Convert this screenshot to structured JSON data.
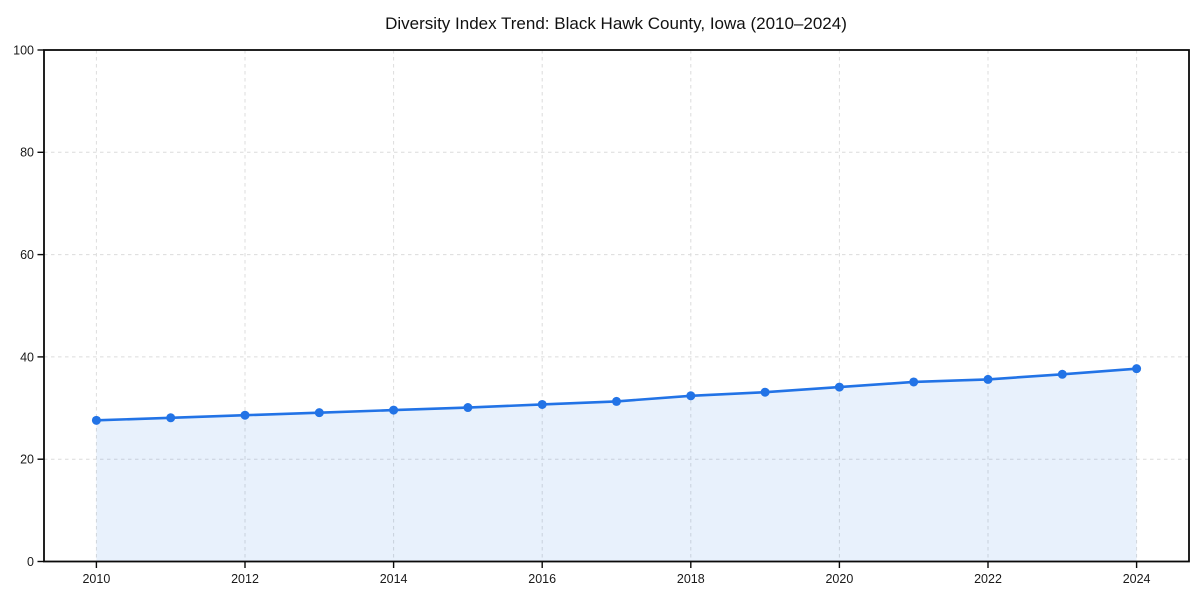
{
  "page": {
    "background": "#ffffff"
  },
  "chart_data": {
    "type": "line",
    "title": "Diversity Index Trend: Black Hawk County, Iowa (2010–2024)",
    "x": [
      2010,
      2011,
      2012,
      2013,
      2014,
      2015,
      2016,
      2017,
      2018,
      2019,
      2020,
      2021,
      2022,
      2023,
      2024
    ],
    "series": [
      {
        "name": "Diversity Index",
        "values": [
          27.6,
          28.1,
          28.6,
          29.1,
          29.6,
          30.1,
          30.7,
          31.3,
          32.4,
          33.1,
          34.1,
          35.1,
          35.6,
          36.6,
          37.7
        ]
      }
    ],
    "xlabel": "",
    "ylabel": "",
    "ylim": [
      0,
      100
    ],
    "yticks": [
      0,
      20,
      40,
      60,
      80,
      100
    ],
    "xticks": [
      2010,
      2012,
      2014,
      2016,
      2018,
      2020,
      2022,
      2024
    ],
    "grid": true,
    "grid_style": "dashed",
    "legend": "none",
    "area_fill": true,
    "marker": "circle",
    "colors": {
      "line": "#2273e6",
      "marker": "#2273e6",
      "fill": "#2273e6",
      "fill_opacity": 0.1,
      "grid": "#dcdcdc",
      "spine": "#0a0a0a",
      "tick": "#0a0a0a",
      "tick_label": "#1a1a1a",
      "title": "#111111",
      "background": "#ffffff"
    }
  }
}
